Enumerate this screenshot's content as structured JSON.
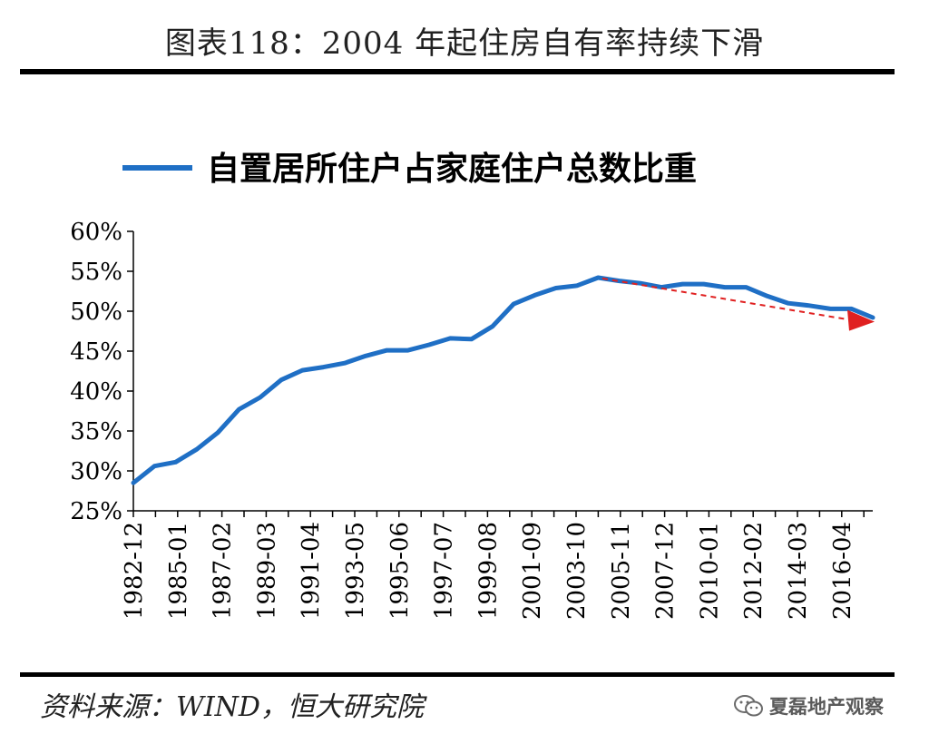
{
  "page": {
    "title": "图表118：2004 年起住房自有率持续下滑",
    "source": "资料来源：WIND，恒大研究院",
    "watermark": "夏磊地产观察"
  },
  "chart_data": {
    "type": "line",
    "ylim": [
      0.25,
      0.6
    ],
    "y_ticks": [
      "25%",
      "30%",
      "35%",
      "40%",
      "45%",
      "50%",
      "55%",
      "60%"
    ],
    "x_tick_labels": [
      "1982-12",
      "1985-01",
      "1987-02",
      "1989-03",
      "1991-04",
      "1993-05",
      "1995-06",
      "1997-07",
      "1999-08",
      "2001-09",
      "2003-10",
      "2005-11",
      "2007-12",
      "2010-01",
      "2012-02",
      "2014-03",
      "2016-04"
    ],
    "legend_position": "top",
    "grid": false,
    "colors": {
      "series": "#1f6fc5",
      "trend": "#e02020"
    },
    "series": [
      {
        "name": "自置居所住户占家庭住户总数比重",
        "values": [
          0.285,
          0.306,
          0.311,
          0.327,
          0.348,
          0.377,
          0.392,
          0.414,
          0.426,
          0.43,
          0.435,
          0.444,
          0.451,
          0.451,
          0.458,
          0.466,
          0.465,
          0.481,
          0.509,
          0.52,
          0.529,
          0.532,
          0.542,
          0.538,
          0.535,
          0.53,
          0.534,
          0.534,
          0.53,
          0.53,
          0.519,
          0.51,
          0.507,
          0.503,
          0.503,
          0.492
        ]
      }
    ],
    "trend_line": {
      "from_value": 0.541,
      "to_value": 0.489,
      "style": "dashed-arrow"
    }
  }
}
